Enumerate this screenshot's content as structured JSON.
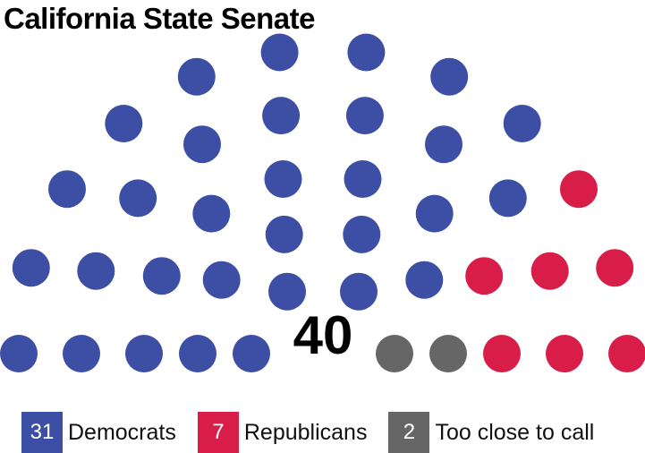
{
  "chart_data": {
    "type": "parliament",
    "title": "California State Senate",
    "total": "40",
    "series": [
      {
        "name": "Democrats",
        "value": 31,
        "color": "#3C4FA5"
      },
      {
        "name": "Republicans",
        "value": 7,
        "color": "#D81D49"
      },
      {
        "name": "Too close to call",
        "value": 2,
        "color": "#666666"
      }
    ],
    "seats_left_to_right": [
      "Democrats",
      "Democrats",
      "Democrats",
      "Democrats",
      "Democrats",
      "Democrats",
      "Democrats",
      "Democrats",
      "Democrats",
      "Democrats",
      "Democrats",
      "Democrats",
      "Democrats",
      "Democrats",
      "Democrats",
      "Democrats",
      "Democrats",
      "Democrats",
      "Democrats",
      "Democrats",
      "Democrats",
      "Democrats",
      "Democrats",
      "Democrats",
      "Democrats",
      "Democrats",
      "Democrats",
      "Democrats",
      "Democrats",
      "Democrats",
      "Democrats",
      "Republicans",
      "Republicans",
      "Republicans",
      "Republicans",
      "Republicans",
      "Republicans",
      "Republicans",
      "Too close to call",
      "Too close to call"
    ],
    "legend_position": "bottom"
  }
}
